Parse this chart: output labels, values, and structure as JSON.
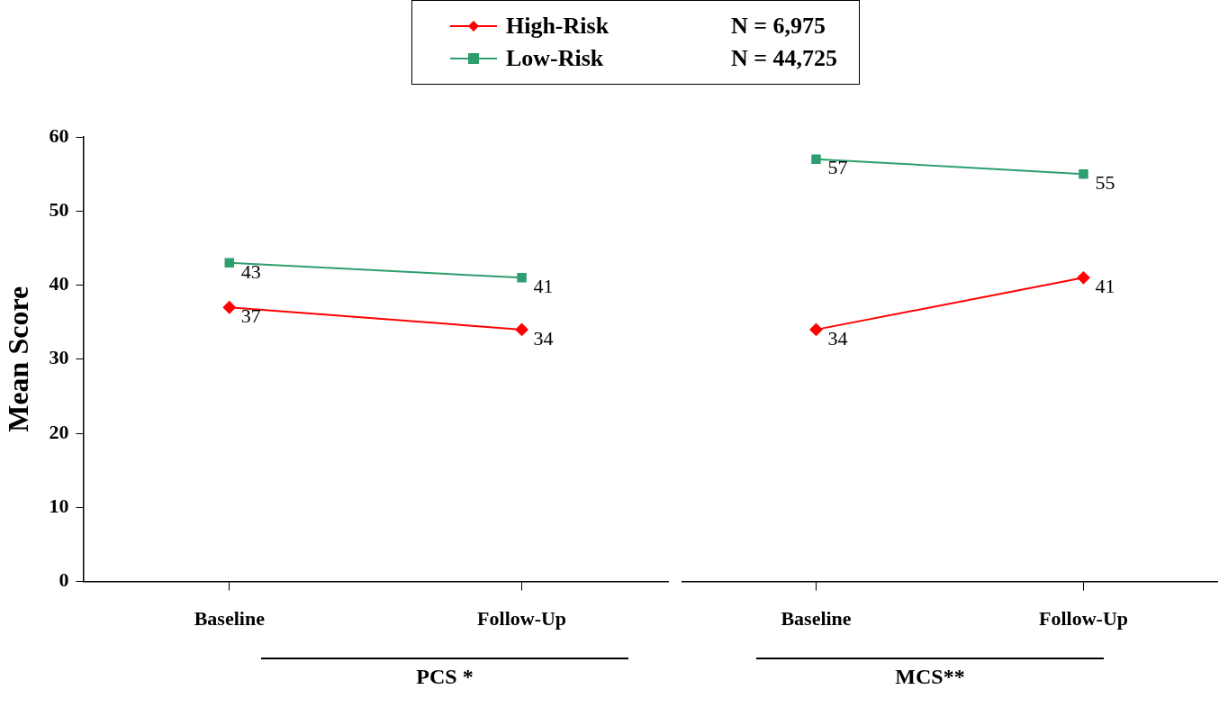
{
  "chart_data": [
    {
      "type": "line",
      "xlabel": "PCS *",
      "ylabel": "Mean Score",
      "categories": [
        "Baseline",
        "Follow-Up"
      ],
      "ylim": [
        0,
        60
      ],
      "yticks": [
        0,
        10,
        20,
        30,
        40,
        50,
        60
      ],
      "grid": false,
      "legend": "top",
      "data_labels": true,
      "annotations": [
        "N = 6,975",
        "N = 44,725"
      ],
      "series": [
        {
          "name": "High-Risk",
          "color": "#ff0000",
          "marker": "diamond",
          "values": [
            37,
            34
          ]
        },
        {
          "name": "Low-Risk",
          "color": "#2e9e6e",
          "marker": "square",
          "values": [
            43,
            41
          ]
        }
      ]
    },
    {
      "type": "line",
      "xlabel": "MCS**",
      "categories": [
        "Baseline",
        "Follow-Up"
      ],
      "ylim": [
        0,
        60
      ],
      "yticks": [
        0,
        10,
        20,
        30,
        40,
        50,
        60
      ],
      "grid": false,
      "data_labels": true,
      "tick_labels": "x",
      "series": [
        {
          "color": "#ff0000",
          "marker": "diamond",
          "values": [
            34,
            41
          ]
        },
        {
          "color": "#2e9e6e",
          "marker": "square",
          "values": [
            57,
            55
          ]
        }
      ]
    }
  ]
}
